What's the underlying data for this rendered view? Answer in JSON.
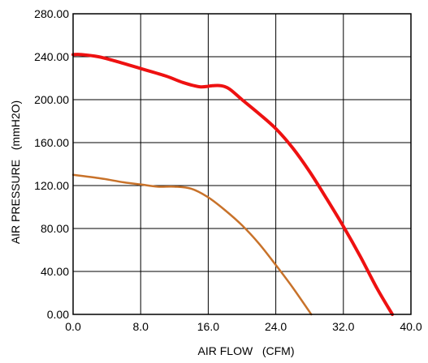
{
  "chart_data": {
    "type": "line",
    "title": "",
    "xlabel": "AIR FLOW   (CFM)",
    "ylabel": "AIR PRESSURE   (mmH2O)",
    "xlim": [
      0,
      40
    ],
    "ylim": [
      0,
      280
    ],
    "x_ticks": [
      "0.0",
      "8.0",
      "16.0",
      "24.0",
      "32.0",
      "40.0"
    ],
    "y_ticks": [
      "0.00",
      "40.00",
      "80.00",
      "120.00",
      "160.00",
      "200.00",
      "240.00",
      "280.00"
    ],
    "grid": true,
    "legend": "none",
    "series": [
      {
        "color": "#ee1111",
        "x": [
          0,
          1,
          3,
          5,
          8,
          11,
          13,
          15,
          16.5,
          17.5,
          18.5,
          20,
          22,
          24,
          26,
          28,
          30,
          32,
          34,
          36,
          37.8
        ],
        "y": [
          242,
          242,
          240,
          236,
          229,
          222,
          216,
          212,
          213,
          213,
          210,
          200,
          187,
          173,
          155,
          133,
          108,
          82,
          54,
          24,
          0
        ]
      },
      {
        "color": "#c8722a",
        "x": [
          0,
          3,
          6,
          8,
          10,
          12,
          14,
          16,
          18,
          20,
          22,
          24,
          26,
          28.2
        ],
        "y": [
          130,
          127,
          123,
          121,
          119,
          119,
          117,
          109,
          97,
          83,
          66,
          46,
          25,
          0
        ]
      }
    ]
  }
}
